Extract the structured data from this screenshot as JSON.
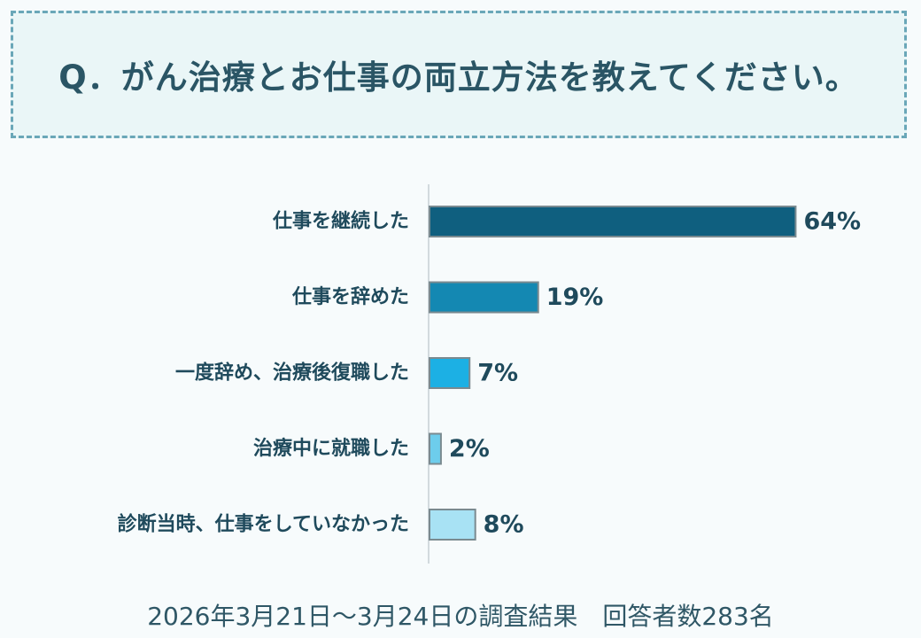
{
  "question": {
    "text": "Q．がん治療とお仕事の両立方法を教えてください。"
  },
  "chart_data": {
    "type": "bar",
    "orientation": "horizontal",
    "categories": [
      "仕事を継続した",
      "仕事を辞めた",
      "一度辞め、治療後復職した",
      "治療中に就職した",
      "診断当時、仕事をしていなかった"
    ],
    "values": [
      64,
      19,
      7,
      2,
      8
    ],
    "value_labels": [
      "64%",
      "19%",
      "7%",
      "2%",
      "8%"
    ],
    "unit": "%",
    "xlim": [
      0,
      100
    ],
    "grid": false,
    "colors": [
      "#0f5f7f",
      "#1488b2",
      "#1cb0e4",
      "#6dcdec",
      "#a8e2f4"
    ],
    "bar_border": "#7a8a90"
  },
  "footer": {
    "text": "2026年3月21日～3月24日の調査結果　回答者数283名"
  }
}
